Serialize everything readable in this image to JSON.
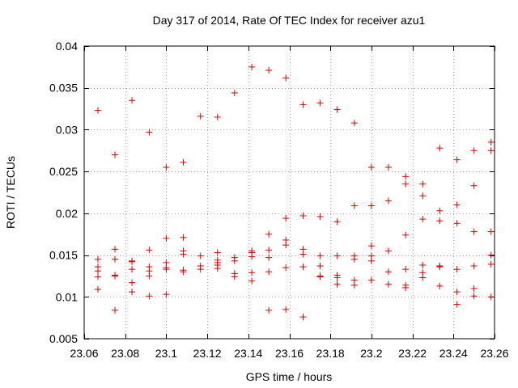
{
  "chart_data": {
    "type": "scatter",
    "title": "Day 317 of 2014, Rate Of TEC Index for receiver azu1",
    "xlabel": "GPS time / hours",
    "ylabel": "ROTI / TECUs",
    "xlim": [
      23.06,
      23.26
    ],
    "ylim": [
      0.005,
      0.04
    ],
    "xticks": [
      23.06,
      23.08,
      23.1,
      23.12,
      23.14,
      23.16,
      23.18,
      23.2,
      23.22,
      23.24,
      23.26
    ],
    "xtick_labels": [
      "23.06",
      "23.08",
      "23.1",
      "23.12",
      "23.14",
      "23.16",
      "23.18",
      "23.2",
      "23.22",
      "23.24",
      "23.26"
    ],
    "yticks": [
      0.005,
      0.01,
      0.015,
      0.02,
      0.025,
      0.03,
      0.035,
      0.04
    ],
    "ytick_labels": [
      "0.005",
      "0.01",
      "0.015",
      "0.02",
      "0.025",
      "0.03",
      "0.035",
      "0.04"
    ],
    "grid": true,
    "marker": "+",
    "color": "#d40000",
    "points": [
      [
        23.0667,
        0.0323
      ],
      [
        23.0667,
        0.0145
      ],
      [
        23.0667,
        0.0136
      ],
      [
        23.0667,
        0.0131
      ],
      [
        23.0667,
        0.0124
      ],
      [
        23.0667,
        0.0109
      ],
      [
        23.075,
        0.027
      ],
      [
        23.075,
        0.0157
      ],
      [
        23.075,
        0.0145
      ],
      [
        23.075,
        0.0126
      ],
      [
        23.075,
        0.0125
      ],
      [
        23.075,
        0.0084
      ],
      [
        23.0833,
        0.0335
      ],
      [
        23.0833,
        0.0143
      ],
      [
        23.0833,
        0.0142
      ],
      [
        23.0833,
        0.0133
      ],
      [
        23.0833,
        0.0117
      ],
      [
        23.0833,
        0.0106
      ],
      [
        23.0917,
        0.0297
      ],
      [
        23.0917,
        0.0156
      ],
      [
        23.0917,
        0.0136
      ],
      [
        23.0917,
        0.0131
      ],
      [
        23.0917,
        0.0125
      ],
      [
        23.0917,
        0.0101
      ],
      [
        23.1,
        0.0255
      ],
      [
        23.1,
        0.017
      ],
      [
        23.1,
        0.0141
      ],
      [
        23.1,
        0.0135
      ],
      [
        23.1,
        0.0133
      ],
      [
        23.1,
        0.0103
      ],
      [
        23.1083,
        0.0261
      ],
      [
        23.1083,
        0.0171
      ],
      [
        23.1083,
        0.0155
      ],
      [
        23.1083,
        0.0151
      ],
      [
        23.1083,
        0.0132
      ],
      [
        23.1083,
        0.013
      ],
      [
        23.1167,
        0.0316
      ],
      [
        23.1167,
        0.0149
      ],
      [
        23.1167,
        0.0137
      ],
      [
        23.1167,
        0.0133
      ],
      [
        23.125,
        0.0315
      ],
      [
        23.125,
        0.0153
      ],
      [
        23.125,
        0.0144
      ],
      [
        23.125,
        0.0141
      ],
      [
        23.125,
        0.0138
      ],
      [
        23.125,
        0.0134
      ],
      [
        23.1333,
        0.0344
      ],
      [
        23.1333,
        0.0147
      ],
      [
        23.1333,
        0.0143
      ],
      [
        23.1333,
        0.0128
      ],
      [
        23.1333,
        0.0124
      ],
      [
        23.1417,
        0.0375
      ],
      [
        23.1417,
        0.0155
      ],
      [
        23.1417,
        0.0153
      ],
      [
        23.1417,
        0.0148
      ],
      [
        23.1417,
        0.0129
      ],
      [
        23.1417,
        0.0119
      ],
      [
        23.15,
        0.0371
      ],
      [
        23.15,
        0.0175
      ],
      [
        23.15,
        0.0156
      ],
      [
        23.15,
        0.0147
      ],
      [
        23.15,
        0.013
      ],
      [
        23.15,
        0.0084
      ],
      [
        23.1583,
        0.0362
      ],
      [
        23.1583,
        0.0194
      ],
      [
        23.1583,
        0.0168
      ],
      [
        23.1583,
        0.0162
      ],
      [
        23.1583,
        0.0135
      ],
      [
        23.1583,
        0.0085
      ],
      [
        23.1667,
        0.033
      ],
      [
        23.1667,
        0.0197
      ],
      [
        23.1667,
        0.0157
      ],
      [
        23.1667,
        0.0151
      ],
      [
        23.1667,
        0.0136
      ],
      [
        23.1667,
        0.0076
      ],
      [
        23.175,
        0.0332
      ],
      [
        23.175,
        0.0196
      ],
      [
        23.175,
        0.0149
      ],
      [
        23.175,
        0.0137
      ],
      [
        23.175,
        0.0125
      ],
      [
        23.175,
        0.0124
      ],
      [
        23.1833,
        0.0324
      ],
      [
        23.1833,
        0.019
      ],
      [
        23.1833,
        0.0149
      ],
      [
        23.1833,
        0.0126
      ],
      [
        23.1833,
        0.0123
      ],
      [
        23.1833,
        0.0115
      ],
      [
        23.1917,
        0.0308
      ],
      [
        23.1917,
        0.0209
      ],
      [
        23.1917,
        0.0149
      ],
      [
        23.1917,
        0.0145
      ],
      [
        23.1917,
        0.012
      ],
      [
        23.1917,
        0.0114
      ],
      [
        23.2,
        0.0255
      ],
      [
        23.2,
        0.0209
      ],
      [
        23.2,
        0.0161
      ],
      [
        23.2,
        0.0149
      ],
      [
        23.2,
        0.0143
      ],
      [
        23.2,
        0.012
      ],
      [
        23.2083,
        0.0255
      ],
      [
        23.2083,
        0.0215
      ],
      [
        23.2083,
        0.0155
      ],
      [
        23.2083,
        0.013
      ],
      [
        23.2083,
        0.0115
      ],
      [
        23.2167,
        0.0244
      ],
      [
        23.2167,
        0.0235
      ],
      [
        23.2167,
        0.0174
      ],
      [
        23.2167,
        0.0133
      ],
      [
        23.2167,
        0.0114
      ],
      [
        23.2167,
        0.0111
      ],
      [
        23.225,
        0.0235
      ],
      [
        23.225,
        0.0221
      ],
      [
        23.225,
        0.0193
      ],
      [
        23.225,
        0.0138
      ],
      [
        23.225,
        0.0129
      ],
      [
        23.225,
        0.0123
      ],
      [
        23.2333,
        0.0278
      ],
      [
        23.2333,
        0.0203
      ],
      [
        23.2333,
        0.0191
      ],
      [
        23.2333,
        0.0137
      ],
      [
        23.2333,
        0.0136
      ],
      [
        23.2333,
        0.0113
      ],
      [
        23.2417,
        0.0264
      ],
      [
        23.2417,
        0.021
      ],
      [
        23.2417,
        0.0188
      ],
      [
        23.2417,
        0.0133
      ],
      [
        23.2417,
        0.0106
      ],
      [
        23.2417,
        0.0091
      ],
      [
        23.25,
        0.0275
      ],
      [
        23.25,
        0.0233
      ],
      [
        23.25,
        0.0178
      ],
      [
        23.25,
        0.0137
      ],
      [
        23.25,
        0.011
      ],
      [
        23.25,
        0.0101
      ],
      [
        23.2583,
        0.0285
      ],
      [
        23.2583,
        0.0275
      ],
      [
        23.2583,
        0.0178
      ],
      [
        23.2583,
        0.015
      ],
      [
        23.2583,
        0.0139
      ],
      [
        23.2583,
        0.01
      ]
    ]
  }
}
